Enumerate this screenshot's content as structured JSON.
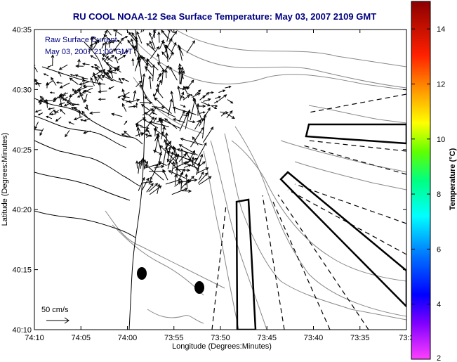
{
  "title": "RU COOL  NOAA-12  Sea Surface Temperature:  May 03, 2007 2109 GMT",
  "annotation": {
    "line1": "Raw Surface Current",
    "line2": "May 03, 2007 21:00 GMT"
  },
  "scale_label": "50 cm/s",
  "axes": {
    "xlabel": "Longitude (Degrees:Minutes)",
    "ylabel": "Latitude (Degrees:Minutes)",
    "x_ticks": [
      "74:10",
      "74:05",
      "74:00",
      "73:55",
      "73:50",
      "73:45",
      "73:40",
      "73:35",
      "73:3"
    ],
    "y_ticks": [
      "40:35",
      "40:30",
      "40:25",
      "40:20",
      "40:15",
      "40:10"
    ]
  },
  "colorbar": {
    "label": "Temperature (°C)",
    "ticks": [
      "14",
      "12",
      "10",
      "8",
      "6",
      "4",
      "2"
    ],
    "range": [
      2,
      15
    ]
  },
  "colors": {
    "title": "#000080",
    "annotation": "#000080",
    "frame": "#000000",
    "contour": "#888888"
  }
}
